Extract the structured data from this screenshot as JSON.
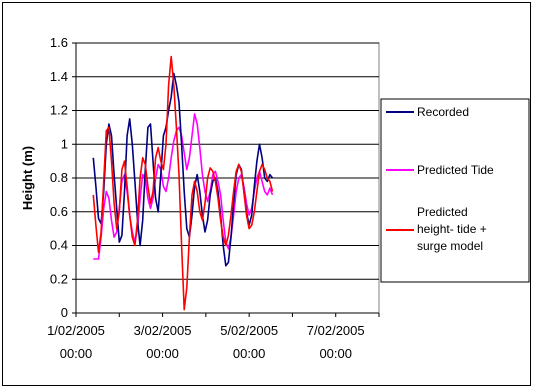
{
  "chart_data": {
    "type": "line",
    "title": "",
    "xlabel": "",
    "ylabel": "Height (m)",
    "ylim": [
      0,
      1.6
    ],
    "yticks": [
      "0",
      "0.2",
      "0.4",
      "0.6",
      "0.8",
      "1",
      "1.2",
      "1.4",
      "1.6"
    ],
    "xlim": [
      "1/02/2005 00:00",
      "8/02/2005 00:00"
    ],
    "xticks": [
      {
        "date": "1/02/2005",
        "time": "00:00",
        "day": 0
      },
      {
        "date": "3/02/2005",
        "time": "00:00",
        "day": 2
      },
      {
        "date": "5/02/2005",
        "time": "00:00",
        "day": 4
      },
      {
        "date": "7/02/2005",
        "time": "00:00",
        "day": 6
      }
    ],
    "grid": "horizontal",
    "legend_position": "right",
    "series": [
      {
        "name": "Recorded",
        "color": "#000080",
        "x_days": [
          0.4,
          0.46,
          0.52,
          0.58,
          0.64,
          0.7,
          0.76,
          0.82,
          0.88,
          0.94,
          1.0,
          1.06,
          1.12,
          1.18,
          1.24,
          1.3,
          1.36,
          1.42,
          1.48,
          1.54,
          1.6,
          1.66,
          1.72,
          1.78,
          1.84,
          1.9,
          1.96,
          2.02,
          2.08,
          2.14,
          2.2,
          2.26,
          2.32,
          2.38,
          2.44,
          2.5,
          2.56,
          2.62,
          2.68,
          2.74,
          2.8,
          2.86,
          2.92,
          2.98,
          3.04,
          3.1,
          3.16,
          3.22,
          3.28,
          3.34,
          3.4,
          3.46,
          3.52,
          3.58,
          3.64,
          3.7,
          3.76,
          3.82,
          3.88,
          3.94,
          4.0,
          4.06,
          4.12,
          4.18,
          4.24,
          4.3,
          4.36,
          4.42,
          4.48,
          4.54
        ],
        "y": [
          0.92,
          0.75,
          0.56,
          0.53,
          0.72,
          1.0,
          1.12,
          1.05,
          0.82,
          0.62,
          0.42,
          0.46,
          0.72,
          1.05,
          1.15,
          1.0,
          0.78,
          0.55,
          0.4,
          0.55,
          0.85,
          1.1,
          1.12,
          0.9,
          0.68,
          0.6,
          0.82,
          1.05,
          1.1,
          1.2,
          1.28,
          1.42,
          1.35,
          1.25,
          1.0,
          0.72,
          0.5,
          0.45,
          0.58,
          0.75,
          0.82,
          0.72,
          0.58,
          0.48,
          0.55,
          0.7,
          0.78,
          0.8,
          0.72,
          0.58,
          0.4,
          0.28,
          0.3,
          0.45,
          0.65,
          0.82,
          0.88,
          0.85,
          0.72,
          0.6,
          0.52,
          0.58,
          0.75,
          0.9,
          1.0,
          0.92,
          0.8,
          0.78,
          0.82,
          0.8
        ]
      },
      {
        "name": "Predicted Tide",
        "color": "#ff00ff",
        "x_days": [
          0.4,
          0.46,
          0.52,
          0.58,
          0.64,
          0.7,
          0.76,
          0.82,
          0.88,
          0.94,
          1.0,
          1.06,
          1.12,
          1.18,
          1.24,
          1.3,
          1.36,
          1.42,
          1.48,
          1.54,
          1.6,
          1.66,
          1.72,
          1.78,
          1.84,
          1.9,
          1.96,
          2.02,
          2.08,
          2.14,
          2.2,
          2.26,
          2.32,
          2.38,
          2.44,
          2.5,
          2.56,
          2.62,
          2.68,
          2.74,
          2.8,
          2.86,
          2.92,
          2.98,
          3.04,
          3.1,
          3.16,
          3.22,
          3.28,
          3.34,
          3.4,
          3.46,
          3.52,
          3.58,
          3.64,
          3.7,
          3.76,
          3.82,
          3.88,
          3.94,
          4.0,
          4.06,
          4.12,
          4.18,
          4.24,
          4.3,
          4.36,
          4.42,
          4.48,
          4.54
        ],
        "y": [
          0.32,
          0.32,
          0.32,
          0.45,
          0.62,
          0.72,
          0.68,
          0.55,
          0.45,
          0.48,
          0.62,
          0.78,
          0.82,
          0.72,
          0.58,
          0.48,
          0.42,
          0.5,
          0.68,
          0.82,
          0.8,
          0.68,
          0.62,
          0.68,
          0.8,
          0.88,
          0.85,
          0.75,
          0.72,
          0.8,
          0.92,
          1.02,
          1.08,
          1.1,
          1.05,
          0.95,
          0.85,
          0.92,
          1.05,
          1.18,
          1.12,
          0.98,
          0.82,
          0.72,
          0.66,
          0.72,
          0.82,
          0.84,
          0.78,
          0.7,
          0.55,
          0.42,
          0.38,
          0.45,
          0.58,
          0.72,
          0.8,
          0.82,
          0.75,
          0.65,
          0.58,
          0.62,
          0.72,
          0.8,
          0.84,
          0.78,
          0.72,
          0.7,
          0.74,
          0.7
        ]
      },
      {
        "name": "Predicted height- tide + surge model",
        "color": "#ff0000",
        "x_days": [
          0.4,
          0.46,
          0.52,
          0.58,
          0.64,
          0.7,
          0.76,
          0.82,
          0.88,
          0.94,
          1.0,
          1.06,
          1.12,
          1.18,
          1.24,
          1.3,
          1.36,
          1.42,
          1.48,
          1.54,
          1.6,
          1.66,
          1.72,
          1.78,
          1.84,
          1.9,
          1.96,
          2.02,
          2.08,
          2.14,
          2.2,
          2.26,
          2.32,
          2.38,
          2.44,
          2.5,
          2.56,
          2.62,
          2.68,
          2.74,
          2.8,
          2.86,
          2.92,
          2.98,
          3.04,
          3.1,
          3.16,
          3.22,
          3.28,
          3.34,
          3.4,
          3.46,
          3.52,
          3.58,
          3.64,
          3.7,
          3.76,
          3.82,
          3.88,
          3.94,
          4.0,
          4.06,
          4.12,
          4.18,
          4.24,
          4.3,
          4.36,
          4.42,
          4.48,
          4.54
        ],
        "y": [
          0.7,
          0.52,
          0.36,
          0.48,
          0.78,
          1.08,
          1.1,
          0.9,
          0.65,
          0.5,
          0.6,
          0.85,
          0.9,
          0.75,
          0.58,
          0.45,
          0.4,
          0.55,
          0.8,
          0.92,
          0.88,
          0.75,
          0.65,
          0.72,
          0.92,
          0.98,
          0.9,
          0.85,
          1.0,
          1.35,
          1.52,
          1.35,
          1.1,
          0.82,
          0.4,
          0.02,
          0.15,
          0.45,
          0.7,
          0.78,
          0.72,
          0.6,
          0.55,
          0.65,
          0.8,
          0.86,
          0.84,
          0.78,
          0.68,
          0.55,
          0.45,
          0.4,
          0.46,
          0.58,
          0.72,
          0.84,
          0.88,
          0.84,
          0.72,
          0.58,
          0.5,
          0.52,
          0.6,
          0.72,
          0.84,
          0.88,
          0.85,
          0.8,
          0.78,
          0.72
        ]
      }
    ]
  }
}
